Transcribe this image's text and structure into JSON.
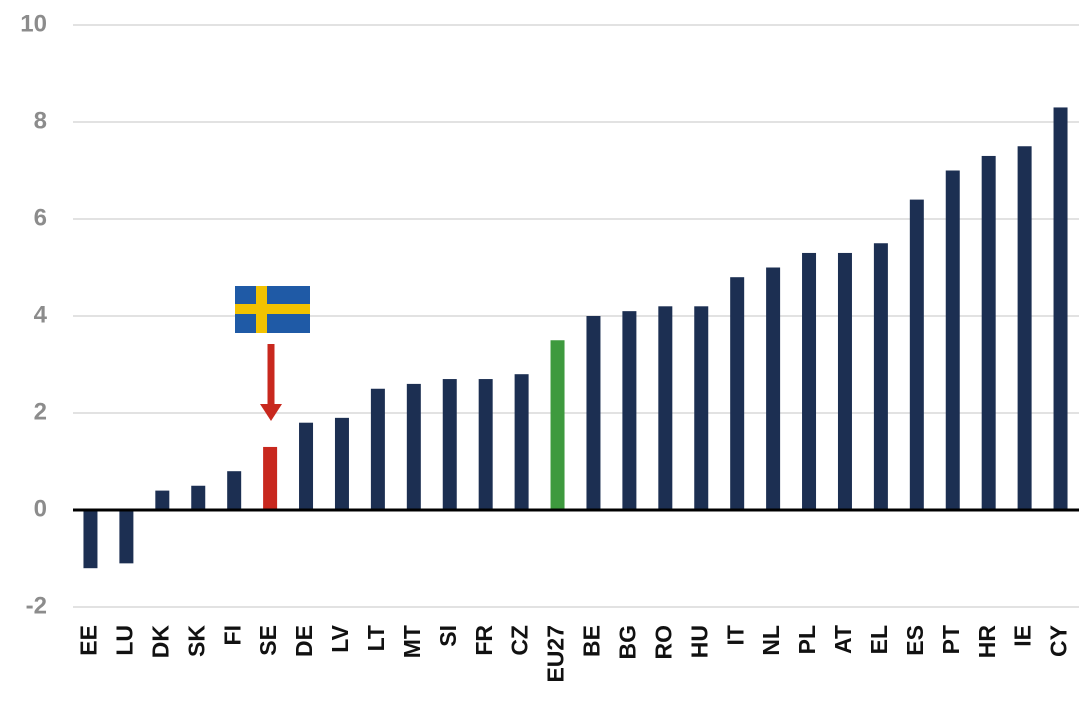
{
  "chart_data": {
    "type": "bar",
    "categories": [
      "EE",
      "LU",
      "DK",
      "SK",
      "FI",
      "SE",
      "DE",
      "LV",
      "LT",
      "MT",
      "SI",
      "FR",
      "CZ",
      "EU27",
      "BE",
      "BG",
      "RO",
      "HU",
      "IT",
      "NL",
      "PL",
      "AT",
      "EL",
      "ES",
      "PT",
      "HR",
      "IE",
      "CY"
    ],
    "values": [
      -1.2,
      -1.1,
      0.4,
      0.5,
      0.8,
      1.3,
      1.8,
      1.9,
      2.5,
      2.6,
      2.7,
      2.7,
      2.8,
      3.5,
      4.0,
      4.1,
      4.2,
      4.2,
      4.8,
      5.0,
      5.3,
      5.3,
      5.5,
      6.4,
      7.0,
      7.3,
      7.5,
      8.3
    ],
    "colors": [
      "#1c2f52",
      "#1c2f52",
      "#1c2f52",
      "#1c2f52",
      "#1c2f52",
      "#c8281e",
      "#1c2f52",
      "#1c2f52",
      "#1c2f52",
      "#1c2f52",
      "#1c2f52",
      "#1c2f52",
      "#1c2f52",
      "#3e9a3e",
      "#1c2f52",
      "#1c2f52",
      "#1c2f52",
      "#1c2f52",
      "#1c2f52",
      "#1c2f52",
      "#1c2f52",
      "#1c2f52",
      "#1c2f52",
      "#1c2f52",
      "#1c2f52",
      "#1c2f52",
      "#1c2f52",
      "#1c2f52"
    ],
    "ylim": [
      -2,
      10
    ],
    "yticks": [
      -2,
      0,
      2,
      4,
      6,
      8,
      10
    ],
    "grid": true
  }
}
